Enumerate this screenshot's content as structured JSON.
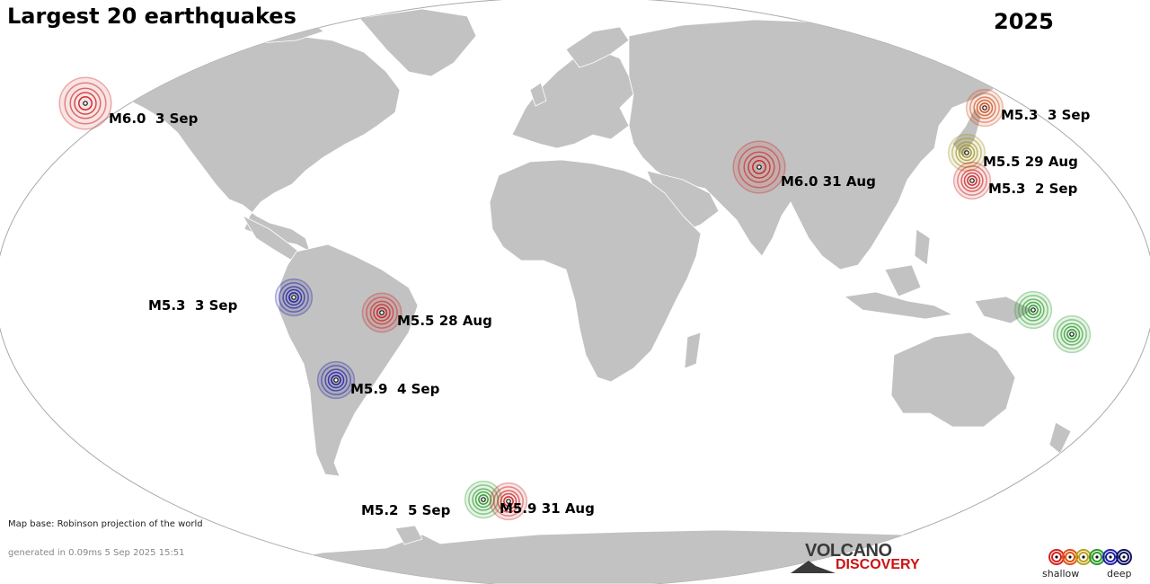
{
  "title": "Largest 20 earthquakes",
  "year": "2025",
  "map_base_note": "Map base: Robinson projection of the world",
  "generated_note": "generated in 0.09ms  5 Sep 2025 15:51",
  "logo": {
    "line1": "VOLCANO",
    "line2": "DISCOVERY"
  },
  "legend": {
    "shallow": "shallow",
    "deep": "deep",
    "colors": [
      "#d62020",
      "#e05010",
      "#b8a020",
      "#2a9a2a",
      "#2020b0",
      "#101060"
    ]
  },
  "colors": {
    "land": "#c2c2c2",
    "border": "#ffffff",
    "ocean": "#ffffff",
    "frame": "#aaaaaa"
  },
  "quakes": [
    {
      "label": "M6.0  3 Sep",
      "color": "#cc2222"
    },
    {
      "label": "M5.3  3 Sep",
      "color": "#cc4a1a"
    },
    {
      "label": "M6.0 31 Aug",
      "color": "#cc2222"
    },
    {
      "label": "M5.5 29 Aug",
      "color": "#a09020"
    },
    {
      "label": "M5.3  2 Sep",
      "color": "#cc2222"
    },
    {
      "label": "M5.3  3 Sep",
      "color": "#1a1aa0"
    },
    {
      "label": "M5.5 28 Aug",
      "color": "#cc2222"
    },
    {
      "label": "M5.9  4 Sep",
      "color": "#1a1aa0"
    },
    {
      "label": "M5.2  5 Sep",
      "color": "#2a9a2a"
    },
    {
      "label": "M5.9 31 Aug",
      "color": "#cc2222"
    },
    {
      "label": "",
      "color": "#2a9a2a"
    },
    {
      "label": "",
      "color": "#2a9a2a"
    }
  ]
}
